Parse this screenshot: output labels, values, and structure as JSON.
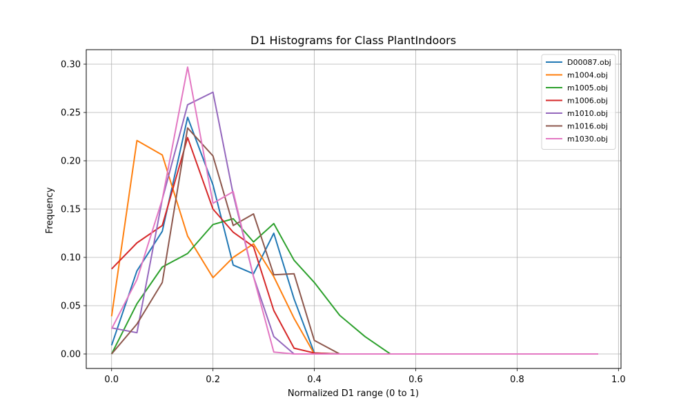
{
  "chart_data": {
    "type": "line",
    "title": "D1 Histograms for Class PlantIndoors",
    "xlabel": "Normalized D1 range (0 to 1)",
    "ylabel": "Frequency",
    "xlim": [
      -0.05,
      1.005
    ],
    "ylim": [
      -0.015,
      0.315
    ],
    "xticks": [
      0.0,
      0.2,
      0.4,
      0.6,
      0.8,
      1.0
    ],
    "xtick_labels": [
      "0.0",
      "0.2",
      "0.4",
      "0.6",
      "0.8",
      "1.0"
    ],
    "yticks": [
      0.0,
      0.05,
      0.1,
      0.15,
      0.2,
      0.25,
      0.3
    ],
    "ytick_labels": [
      "0.00",
      "0.05",
      "0.10",
      "0.15",
      "0.20",
      "0.25",
      "0.30"
    ],
    "grid": true,
    "legend_position": "top-right",
    "x": [
      0.0,
      0.05,
      0.1,
      0.15,
      0.2,
      0.24,
      0.28,
      0.32,
      0.36,
      0.4,
      0.45,
      0.5,
      0.55,
      0.6,
      0.65,
      0.7,
      0.75,
      0.8,
      0.85,
      0.9,
      0.96
    ],
    "series": [
      {
        "name": "D00087.obj",
        "color": "#1f77b4",
        "values": [
          0.009,
          0.086,
          0.127,
          0.245,
          0.175,
          0.092,
          0.083,
          0.125,
          0.057,
          0.001,
          0.0,
          0.0,
          0.0,
          0.0,
          0.0,
          0.0,
          0.0,
          0.0,
          0.0,
          0.0,
          0.0
        ]
      },
      {
        "name": "m1004.obj",
        "color": "#ff7f0e",
        "values": [
          0.039,
          0.221,
          0.206,
          0.122,
          0.079,
          0.1,
          0.114,
          0.08,
          0.037,
          0.0,
          0.0,
          0.0,
          0.0,
          0.0,
          0.0,
          0.0,
          0.0,
          0.0,
          0.0,
          0.0,
          0.0
        ]
      },
      {
        "name": "m1005.obj",
        "color": "#2ca02c",
        "values": [
          0.0,
          0.052,
          0.09,
          0.104,
          0.134,
          0.14,
          0.116,
          0.135,
          0.097,
          0.074,
          0.04,
          0.018,
          0.0,
          0.0,
          0.0,
          0.0,
          0.0,
          0.0,
          0.0,
          0.0,
          0.0
        ]
      },
      {
        "name": "m1006.obj",
        "color": "#d62728",
        "values": [
          0.088,
          0.115,
          0.133,
          0.224,
          0.15,
          0.126,
          0.111,
          0.045,
          0.006,
          0.001,
          0.0,
          0.0,
          0.0,
          0.0,
          0.0,
          0.0,
          0.0,
          0.0,
          0.0,
          0.0,
          0.0
        ]
      },
      {
        "name": "m1010.obj",
        "color": "#9467bd",
        "values": [
          0.027,
          0.022,
          0.16,
          0.258,
          0.271,
          0.165,
          0.08,
          0.018,
          0.0,
          0.0,
          0.0,
          0.0,
          0.0,
          0.0,
          0.0,
          0.0,
          0.0,
          0.0,
          0.0,
          0.0,
          0.0
        ]
      },
      {
        "name": "m1016.obj",
        "color": "#8c564b",
        "values": [
          0.0,
          0.031,
          0.074,
          0.234,
          0.205,
          0.133,
          0.145,
          0.082,
          0.083,
          0.014,
          0.0,
          0.0,
          0.0,
          0.0,
          0.0,
          0.0,
          0.0,
          0.0,
          0.0,
          0.0,
          0.0
        ]
      },
      {
        "name": "m1030.obj",
        "color": "#e377c2",
        "values": [
          0.026,
          0.077,
          0.16,
          0.297,
          0.156,
          0.168,
          0.08,
          0.002,
          0.0,
          0.0,
          0.0,
          0.0,
          0.0,
          0.0,
          0.0,
          0.0,
          0.0,
          0.0,
          0.0,
          0.0,
          0.0
        ]
      }
    ]
  }
}
